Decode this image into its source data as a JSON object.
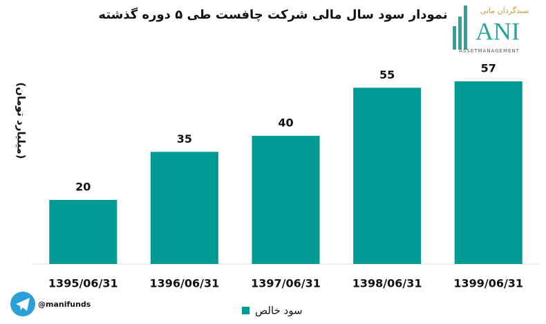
{
  "chart_data": {
    "type": "bar",
    "title": "نمودار سود سال مالی شرکت چافست طی ۵ دوره گذشته",
    "y_label": "(میلیارد تومان)",
    "categories": [
      "1395/06/31",
      "1396/06/31",
      "1397/06/31",
      "1398/06/31",
      "1399/06/31"
    ],
    "series": [
      {
        "name": "سود خالص",
        "color": "#009a94",
        "values": [
          20,
          35,
          40,
          55,
          57
        ]
      }
    ]
  },
  "logo": {
    "persian": "سبدگردان مانی",
    "letters": "ANI",
    "tagline": "ASSETMANAGEMENT"
  },
  "watermark": "@manifunds"
}
